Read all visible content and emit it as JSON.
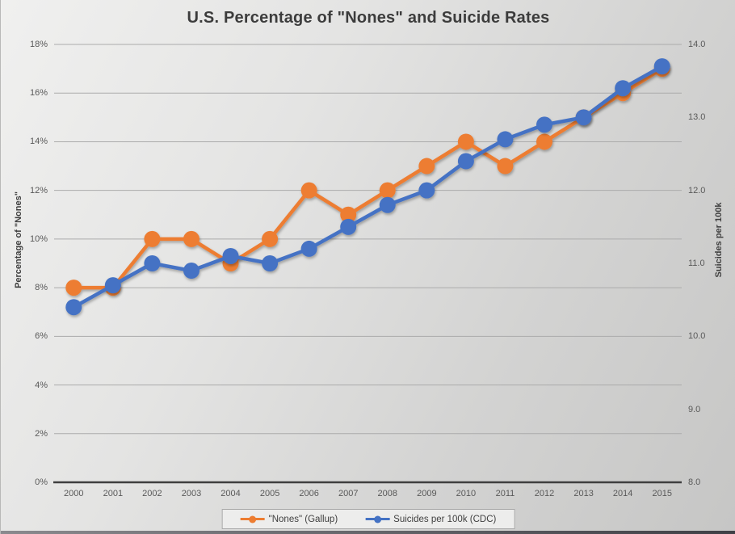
{
  "title": "U.S. Percentage of \"Nones\" and Suicide Rates",
  "chart_data": {
    "type": "line",
    "title": "U.S. Percentage of \"Nones\" and Suicide Rates",
    "x": [
      "2000",
      "2001",
      "2002",
      "2003",
      "2004",
      "2005",
      "2006",
      "2007",
      "2008",
      "2009",
      "2010",
      "2011",
      "2012",
      "2013",
      "2014",
      "2015"
    ],
    "series": [
      {
        "name": "\"Nones\" (Gallup)",
        "axis": "left",
        "color": "#ED7D31",
        "values": [
          8,
          8,
          10,
          10,
          9,
          10,
          12,
          11,
          12,
          13,
          14,
          13,
          14,
          15,
          16,
          17
        ]
      },
      {
        "name": "Suicides per 100k (CDC)",
        "axis": "right",
        "color": "#4472C4",
        "values": [
          10.4,
          10.7,
          11.0,
          10.9,
          11.1,
          11.0,
          11.2,
          11.5,
          11.8,
          12.0,
          12.4,
          12.7,
          12.9,
          13.0,
          13.4,
          13.7
        ]
      }
    ],
    "left_axis": {
      "title": "Percentage of \"Nones\"",
      "min": 0,
      "max": 18,
      "tick_values": [
        0,
        2,
        4,
        6,
        8,
        10,
        12,
        14,
        16,
        18
      ],
      "tick_labels": [
        "0%",
        "2%",
        "4%",
        "6%",
        "8%",
        "10%",
        "12%",
        "14%",
        "16%",
        "18%"
      ]
    },
    "right_axis": {
      "title": "Suicides per 100k",
      "min": 8,
      "max": 14,
      "tick_values": [
        8,
        9,
        10,
        11,
        12,
        13,
        14
      ],
      "tick_labels": [
        "8.0",
        "9.0",
        "10.0",
        "11.0",
        "12.0",
        "13.0",
        "14.0"
      ]
    },
    "grid": true,
    "legend_position": "bottom",
    "gridline_color": "#ababab",
    "axis_line_color": "#3f3f3f"
  }
}
